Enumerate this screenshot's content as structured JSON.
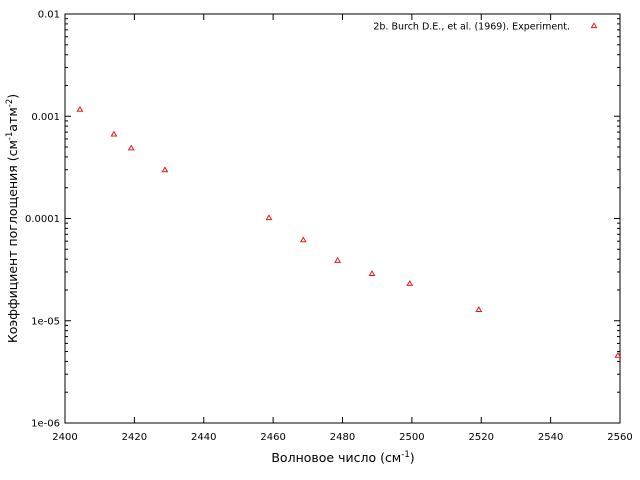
{
  "chart_data": {
    "type": "scatter",
    "xlabel": {
      "main": "Волновое число (см",
      "sup": "-1",
      "tail": ")"
    },
    "ylabel": {
      "main": "Коэффициент поглощения (см",
      "sup1": "-1",
      "mid": "атм",
      "sup2": "-2",
      "tail": ")"
    },
    "xlim": [
      2400,
      2560
    ],
    "ylim": [
      1e-06,
      0.01
    ],
    "yscale": "log",
    "grid": false,
    "legend_position": "top-right",
    "x_ticks": [
      {
        "value": 2400,
        "label": "2400"
      },
      {
        "value": 2420,
        "label": "2420"
      },
      {
        "value": 2440,
        "label": "2440"
      },
      {
        "value": 2460,
        "label": "2460"
      },
      {
        "value": 2480,
        "label": "2480"
      },
      {
        "value": 2500,
        "label": "2500"
      },
      {
        "value": 2520,
        "label": "2520"
      },
      {
        "value": 2540,
        "label": "2540"
      },
      {
        "value": 2560,
        "label": "2560"
      }
    ],
    "y_ticks": [
      {
        "value": 0.01,
        "label": "0.01"
      },
      {
        "value": 0.001,
        "label": "0.001"
      },
      {
        "value": 0.0001,
        "label": "0.0001"
      },
      {
        "value": 1e-05,
        "label": "1e-05"
      },
      {
        "value": 1e-06,
        "label": "1e-06"
      }
    ],
    "series": [
      {
        "name": "2b. Burch D.E., et al. (1969). Experiment.",
        "color": "#e41a1c",
        "marker": "triangle",
        "points": [
          {
            "x": 2404.3,
            "y": 0.00117
          },
          {
            "x": 2414.1,
            "y": 0.00067
          },
          {
            "x": 2419.1,
            "y": 0.00049
          },
          {
            "x": 2428.8,
            "y": 0.0003
          },
          {
            "x": 2458.8,
            "y": 0.000102
          },
          {
            "x": 2468.7,
            "y": 6.2e-05
          },
          {
            "x": 2478.6,
            "y": 3.9e-05
          },
          {
            "x": 2488.5,
            "y": 2.9e-05
          },
          {
            "x": 2499.4,
            "y": 2.32e-05
          },
          {
            "x": 2519.3,
            "y": 1.29e-05
          },
          {
            "x": 2559.4,
            "y": 4.6e-06
          }
        ]
      }
    ]
  }
}
